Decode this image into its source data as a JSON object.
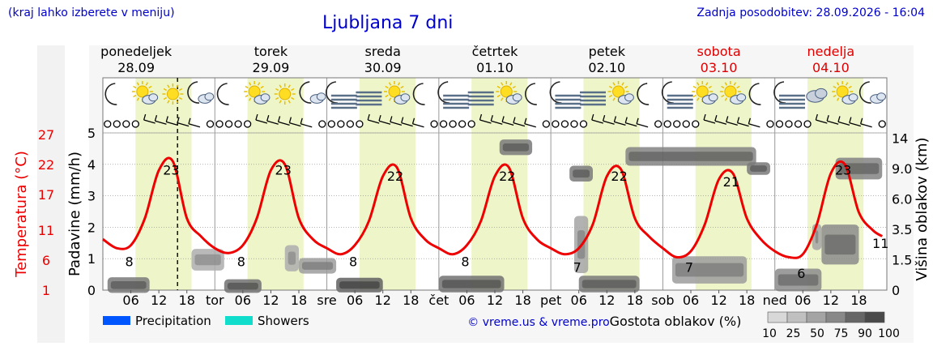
{
  "header": {
    "hint": "(kraj lahko izberete v meniju)",
    "title": "Ljubljana 7 dni",
    "updated": "Zadnja posodobitev: 28.09.2026 - 16:04"
  },
  "colors": {
    "temperature": "#ee0000",
    "left_axis_label": "#ee0000",
    "weekday_text": "#000000",
    "weekend_text": "#dd0000",
    "daylight_band": "#eef5c8",
    "precipitation": "#0055ff",
    "showers": "#11ddcc",
    "credit": "#0000cc"
  },
  "days": [
    {
      "name": "ponedeljek",
      "date": "28.09",
      "abbr": "",
      "weekend": false
    },
    {
      "name": "torek",
      "date": "29.09",
      "abbr": "tor",
      "weekend": false
    },
    {
      "name": "sreda",
      "date": "30.09",
      "abbr": "sre",
      "weekend": false
    },
    {
      "name": "četrtek",
      "date": "01.10",
      "abbr": "čet",
      "weekend": false
    },
    {
      "name": "petek",
      "date": "02.10",
      "abbr": "pet",
      "weekend": false
    },
    {
      "name": "sobota",
      "date": "03.10",
      "abbr": "sob",
      "weekend": true
    },
    {
      "name": "nedelja",
      "date": "04.10",
      "abbr": "ned",
      "weekend": true
    }
  ],
  "hour_ticks": [
    "06",
    "12",
    "18"
  ],
  "weather_icons": [
    [
      "moon-icon",
      "sun-cloud-icon",
      "sun-icon",
      "moon-cloud-icon"
    ],
    [
      "moon-icon",
      "sun-cloud-icon",
      "sun-icon",
      "moon-cloud-icon"
    ],
    [
      "moon-fog-icon",
      "fog-icon",
      "sun-cloud-icon",
      "moon-icon"
    ],
    [
      "moon-fog-icon",
      "fog-icon",
      "sun-cloud-icon",
      "moon-icon"
    ],
    [
      "moon-fog-icon",
      "fog-icon",
      "sun-cloud-icon",
      "moon-icon"
    ],
    [
      "moon-fog-icon",
      "sun-cloud-icon",
      "sun-cloud-icon",
      "moon-icon"
    ],
    [
      "moon-fog-icon",
      "cloud-icon",
      "sun-cloud-icon",
      "moon-cloud-icon"
    ]
  ],
  "chart_data": {
    "type": "line",
    "title": "Ljubljana 7 dni",
    "ylabel_left": "Padavine (mm/h)",
    "ylabel_left_outer": "Temperatura (°C)",
    "ylabel_right": "Višina oblakov (km)",
    "precip_ticks": [
      "0",
      "1",
      "2",
      "3",
      "4",
      "5"
    ],
    "temp_ticks": [
      "1",
      "6",
      "11",
      "17",
      "22",
      "27"
    ],
    "cloud_height_ticks": [
      "0",
      "1.5",
      "3.5",
      "6.0",
      "9.0",
      "14"
    ],
    "ylim_precip": [
      0,
      5
    ],
    "grid": true,
    "temperature_series": {
      "name": "Temperatura",
      "hours": [
        0,
        3,
        6,
        9,
        12,
        15,
        18,
        21,
        24,
        27,
        30,
        33,
        36,
        39,
        42,
        45,
        48,
        51,
        54,
        57,
        60,
        63,
        66,
        69,
        72,
        75,
        78,
        81,
        84,
        87,
        90,
        93,
        96,
        99,
        102,
        105,
        108,
        111,
        114,
        117,
        120,
        123,
        126,
        129,
        132,
        135,
        138,
        141,
        144,
        147,
        150,
        153,
        156,
        159,
        162,
        165,
        167
      ],
      "values": [
        9.5,
        8,
        8.5,
        13,
        21,
        22.5,
        13,
        10,
        8,
        7.2,
        8.5,
        13,
        21,
        22,
        13,
        9.5,
        8,
        7,
        8.5,
        12.5,
        20,
        21.5,
        13,
        9.5,
        8,
        7,
        8.5,
        12.5,
        20,
        21.5,
        13,
        9.5,
        8,
        7,
        8,
        12,
        20,
        21.2,
        13,
        10,
        8,
        6.5,
        7.5,
        12,
        19.5,
        20.5,
        13,
        9.5,
        7.5,
        6.5,
        7,
        12,
        20.5,
        22,
        14,
        11,
        10
      ]
    },
    "extreme_labels": [
      {
        "hour": 15,
        "value": 23
      },
      {
        "hour": 6,
        "value": 8
      },
      {
        "hour": 39,
        "value": 23
      },
      {
        "hour": 30,
        "value": 8
      },
      {
        "hour": 63,
        "value": 22
      },
      {
        "hour": 54,
        "value": 8
      },
      {
        "hour": 87,
        "value": 22
      },
      {
        "hour": 78,
        "value": 8
      },
      {
        "hour": 111,
        "value": 22
      },
      {
        "hour": 102,
        "value": 7
      },
      {
        "hour": 135,
        "value": 21
      },
      {
        "hour": 126,
        "value": 7
      },
      {
        "hour": 159,
        "value": 23
      },
      {
        "hour": 150,
        "value": 6
      },
      {
        "hour": 167,
        "value": 11
      }
    ],
    "current_time_hour": 16,
    "cloud_patches": [
      {
        "h0": 1,
        "h1": 10,
        "km": 0.25,
        "d": 0.55,
        "span": 0.45
      },
      {
        "h0": 19,
        "h1": 26,
        "km": 1.5,
        "d": 0.25,
        "span": 1.0
      },
      {
        "h0": 26,
        "h1": 34,
        "km": 0.2,
        "d": 0.6,
        "span": 0.35
      },
      {
        "h0": 39,
        "h1": 42,
        "km": 1.6,
        "d": 0.25,
        "span": 1.3
      },
      {
        "h0": 42,
        "h1": 50,
        "km": 1.2,
        "d": 0.35,
        "span": 0.5
      },
      {
        "h0": 50,
        "h1": 60,
        "km": 0.25,
        "d": 0.7,
        "span": 0.4
      },
      {
        "h0": 72,
        "h1": 86,
        "km": 0.3,
        "d": 0.6,
        "span": 0.5
      },
      {
        "h0": 85,
        "h1": 92,
        "km": 12.5,
        "d": 0.55,
        "span": 1.5
      },
      {
        "h0": 100,
        "h1": 105,
        "km": 8.5,
        "d": 0.55,
        "span": 1.2
      },
      {
        "h0": 101,
        "h1": 104,
        "km": 2.5,
        "d": 0.3,
        "span": 4.0
      },
      {
        "h0": 102,
        "h1": 115,
        "km": 0.3,
        "d": 0.55,
        "span": 0.5
      },
      {
        "h0": 112,
        "h1": 140,
        "km": 11,
        "d": 0.5,
        "span": 2.0
      },
      {
        "h0": 122,
        "h1": 138,
        "km": 1.0,
        "d": 0.35,
        "span": 1.2
      },
      {
        "h0": 138,
        "h1": 143,
        "km": 9.0,
        "d": 0.55,
        "span": 1.0
      },
      {
        "h0": 144,
        "h1": 154,
        "km": 0.5,
        "d": 0.45,
        "span": 0.8
      },
      {
        "h0": 152,
        "h1": 154,
        "km": 3.0,
        "d": 0.3,
        "span": 1.5
      },
      {
        "h0": 154,
        "h1": 162,
        "km": 2.5,
        "d": 0.45,
        "span": 2.5
      },
      {
        "h0": 157,
        "h1": 167,
        "km": 9.0,
        "d": 0.5,
        "span": 2.5
      }
    ]
  },
  "legend": {
    "precipitation": "Precipitation",
    "showers": "Showers",
    "credit": "© vreme.us & vreme.pro",
    "density_title": "Gostota oblakov (%)",
    "density_ticks": [
      "10",
      "25",
      "50",
      "75",
      "90",
      "100"
    ]
  }
}
